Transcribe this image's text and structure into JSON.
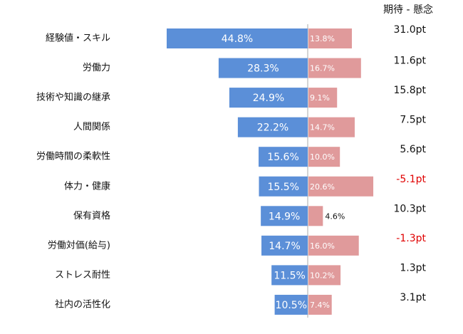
{
  "chart_data": {
    "type": "diverging_bar",
    "categories": [
      "経験値・スキル",
      "労働力",
      "技術や知識の継承",
      "人間関係",
      "労働時間の柔軟性",
      "体力・健康",
      "保有資格",
      "労働対価(給与)",
      "ストレス耐性",
      "社内の活性化"
    ],
    "series": [
      {
        "color": "#5b8fd8",
        "side": "left",
        "values": [
          44.8,
          28.3,
          24.9,
          22.2,
          15.6,
          15.5,
          14.9,
          14.7,
          11.5,
          10.5
        ],
        "value_labels": [
          "44.8%",
          "28.3%",
          "24.9%",
          "22.2%",
          "15.6%",
          "15.5%",
          "14.9%",
          "14.7%",
          "11.5%",
          "10.5%"
        ]
      },
      {
        "color": "#e09a9b",
        "side": "right",
        "values": [
          13.8,
          16.7,
          9.1,
          14.7,
          10.0,
          20.6,
          4.6,
          16.0,
          10.2,
          7.4
        ],
        "value_labels": [
          "13.8%",
          "16.7%",
          "9.1%",
          "14.7%",
          "10.0%",
          "20.6%",
          "4.6%",
          "16.0%",
          "10.2%",
          "7.4%"
        ]
      }
    ],
    "difference": {
      "name": "期待 - 懸念",
      "color": "#111111",
      "negative_color": "#e00000",
      "values": [
        31.0,
        11.6,
        15.8,
        7.5,
        5.6,
        -5.1,
        10.3,
        -1.3,
        1.3,
        3.1
      ],
      "value_labels": [
        "31.0pt",
        "11.6pt",
        "15.8pt",
        "7.5pt",
        "5.6pt",
        "-5.1pt",
        "10.3pt",
        "-1.3pt",
        "1.3pt",
        "3.1pt"
      ]
    }
  }
}
